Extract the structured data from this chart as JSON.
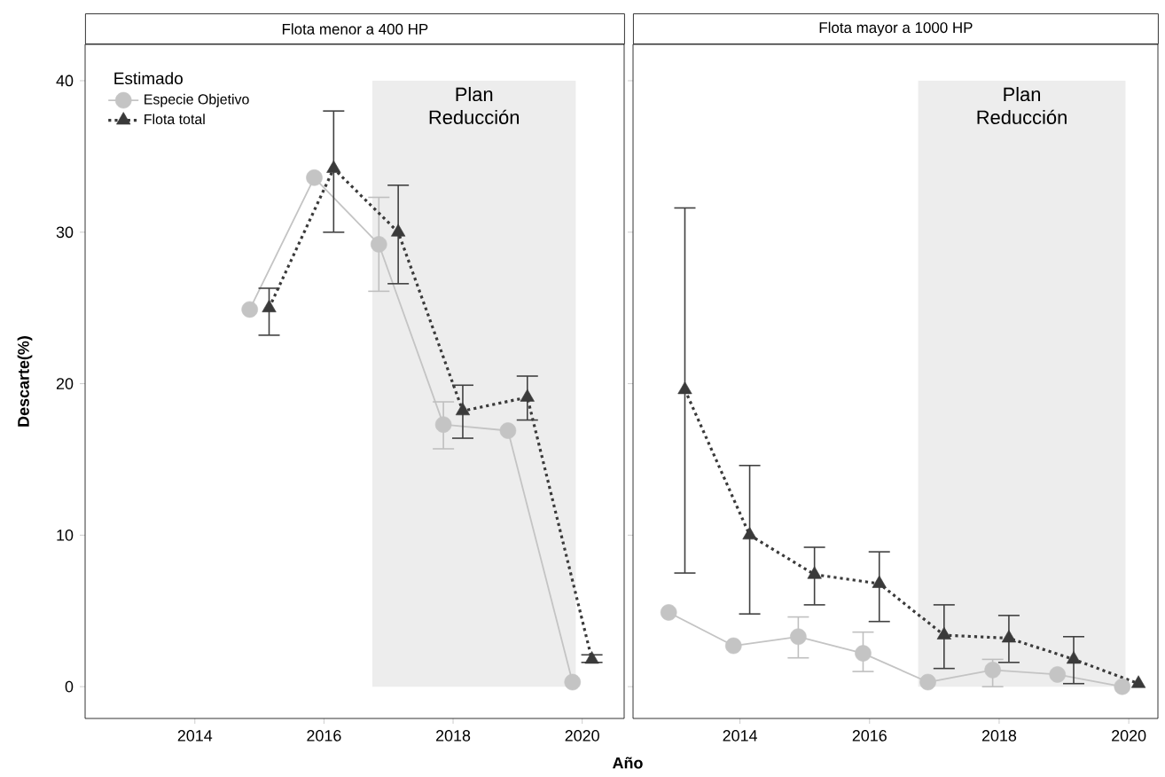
{
  "chart_data": [
    {
      "type": "line",
      "title": "Flota menor a 400  HP",
      "xlabel": "Año",
      "ylabel": "Descarte(%)",
      "legend_title": "Estimado",
      "legend": "top left",
      "xlim": [
        2012.3,
        2020.65
      ],
      "ylim": [
        -2.1,
        42.4
      ],
      "xticks": [
        2014,
        2016,
        2018,
        2020
      ],
      "yticks": [
        0,
        10,
        20,
        30,
        40
      ],
      "bands": [
        {
          "axis": "x",
          "from": 2016.75,
          "to": 2019.9,
          "label": "Plan Reducción",
          "color": "#ededed"
        }
      ],
      "series": [
        {
          "name": "Especie Objetivo",
          "color": "#c4c4c4",
          "marker": "circle",
          "line_style": "solid",
          "x": [
            2014.85,
            2015.85,
            2016.85,
            2017.85,
            2018.85,
            2019.85
          ],
          "values": [
            24.9,
            33.6,
            29.2,
            17.3,
            16.9,
            0.3
          ],
          "errors": [
            null,
            null,
            [
              26.1,
              32.3
            ],
            [
              15.7,
              18.8
            ],
            null,
            null
          ]
        },
        {
          "name": "Flota total",
          "color": "#3a3a3a",
          "marker": "triangle",
          "line_style": "dotted",
          "x": [
            2015.15,
            2016.15,
            2017.15,
            2018.15,
            2019.15,
            2020.15
          ],
          "values": [
            25.0,
            34.2,
            30.0,
            18.2,
            19.1,
            1.8
          ],
          "errors": [
            [
              23.2,
              26.3
            ],
            [
              30.0,
              38.0
            ],
            [
              26.6,
              33.1
            ],
            [
              16.4,
              19.9
            ],
            [
              17.6,
              20.5
            ],
            [
              1.6,
              2.1
            ]
          ]
        }
      ]
    },
    {
      "type": "line",
      "title": "Flota mayor a 1000  HP",
      "tick_labels": "x",
      "xlim": [
        2012.35,
        2020.45
      ],
      "ylim": [
        -2.1,
        42.4
      ],
      "xticks": [
        2014,
        2016,
        2018,
        2020
      ],
      "yticks": [
        0,
        10,
        20,
        30,
        40
      ],
      "bands": [
        {
          "axis": "x",
          "from": 2016.75,
          "to": 2019.95,
          "label": "Plan Reducción",
          "color": "#ededed"
        }
      ],
      "series": [
        {
          "color": "#c4c4c4",
          "marker": "circle",
          "line_style": "solid",
          "x": [
            2012.9,
            2013.9,
            2014.9,
            2015.9,
            2016.9,
            2017.9,
            2018.9,
            2019.9
          ],
          "values": [
            4.9,
            2.7,
            3.3,
            2.2,
            0.3,
            1.1,
            0.8,
            0.0
          ],
          "errors": [
            null,
            null,
            [
              1.9,
              4.6
            ],
            [
              1.0,
              3.6
            ],
            null,
            [
              0.0,
              1.8
            ],
            null,
            null
          ]
        },
        {
          "color": "#3a3a3a",
          "marker": "triangle",
          "line_style": "dotted",
          "x": [
            2013.15,
            2014.15,
            2015.15,
            2016.15,
            2017.15,
            2018.15,
            2019.15,
            2020.15
          ],
          "values": [
            19.6,
            10.0,
            7.4,
            6.8,
            3.4,
            3.2,
            1.8,
            0.2
          ],
          "errors": [
            [
              7.5,
              31.6
            ],
            [
              4.8,
              14.6
            ],
            [
              5.4,
              9.2
            ],
            [
              4.3,
              8.9
            ],
            [
              1.2,
              5.4
            ],
            [
              1.6,
              4.7
            ],
            [
              0.2,
              3.3
            ],
            null
          ]
        }
      ]
    }
  ]
}
